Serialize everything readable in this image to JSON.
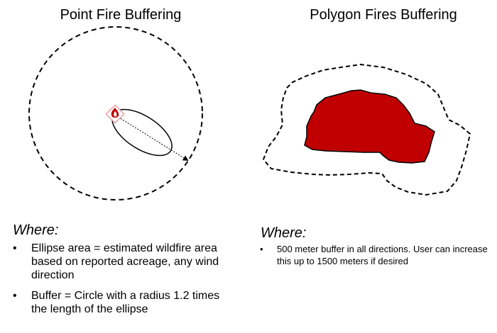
{
  "panels": {
    "point": {
      "title": "Point Fire Buffering",
      "where_label": "Where:",
      "bullets": [
        "Ellipse area = estimated wildfire area based on reported acreage, any wind direction",
        "Buffer = Circle with a radius 1.2 times the length of the ellipse"
      ]
    },
    "polygon": {
      "title": "Polygon Fires Buffering",
      "where_label": "Where:",
      "bullets": [
        "500 meter buffer in all directions. User can increase this up to 1500 meters if desired"
      ]
    }
  },
  "colors": {
    "fire_fill": "#c00000",
    "stroke": "#000000",
    "fire_icon": "#c00000",
    "icon_border": "#e8a0a8"
  }
}
